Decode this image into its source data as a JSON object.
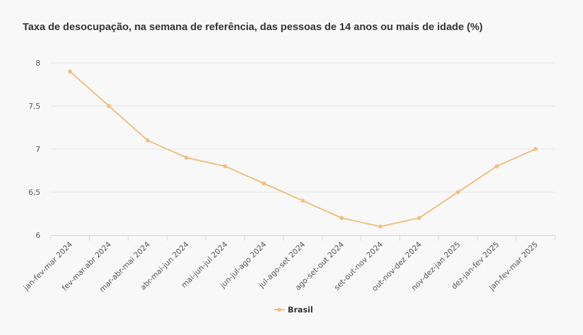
{
  "chart_data": {
    "type": "line",
    "title": "Taxa de desocupação, na semana de referência, das pessoas de 14 anos ou mais de idade (%)",
    "categories": [
      "jan-fev-mar 2024",
      "fev-mar-abr 2024",
      "mar-abr-mai 2024",
      "abr-mai-jun 2024",
      "mai-jun-jul 2024",
      "jun-jul-ago 2024",
      "jul-ago-set 2024",
      "ago-set-out 2024",
      "set-out-nov 2024",
      "out-nov-dez 2024",
      "nov-dez-jan 2025",
      "dez-jan-fev 2025",
      "jan-fev-mar 2025"
    ],
    "series": [
      {
        "name": "Brasil",
        "values": [
          7.9,
          7.5,
          7.1,
          6.9,
          6.8,
          6.6,
          6.4,
          6.2,
          6.1,
          6.2,
          6.5,
          6.8,
          7.0
        ]
      }
    ],
    "ylim": [
      6,
      8
    ],
    "yticks": [
      6,
      6.5,
      7,
      7.5,
      8
    ],
    "ytick_labels": [
      "6",
      "6,5",
      "7",
      "7,5",
      "8"
    ],
    "grid": true,
    "legend": "bottom-center",
    "colors": {
      "series": "#f0c080",
      "grid": "#e6e6e6",
      "axis": "#ccd6eb"
    }
  }
}
